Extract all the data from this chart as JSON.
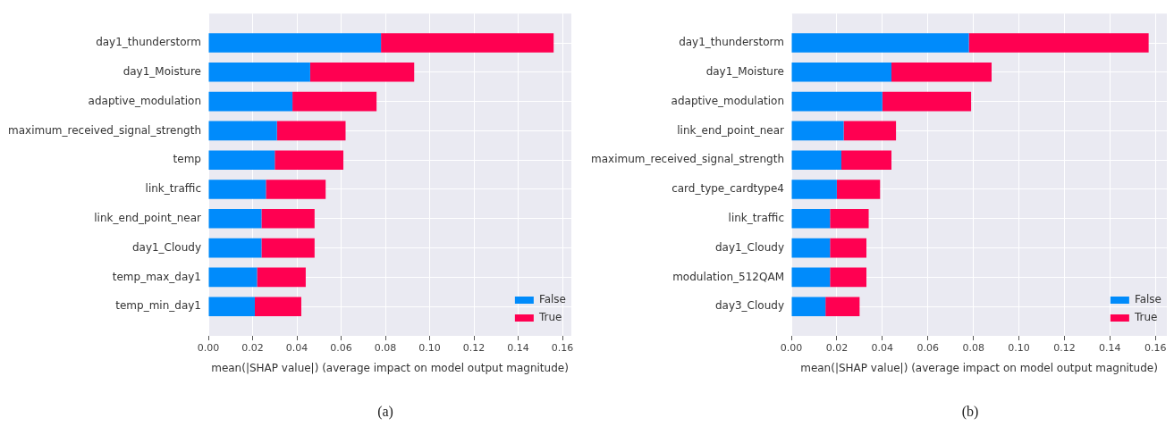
{
  "chart_data": [
    {
      "type": "bar",
      "orientation": "horizontal",
      "stacked": true,
      "xlabel": "mean(|SHAP value|) (average impact on model output magnitude)",
      "categories": [
        "day1_thunderstorm",
        "day1_Moisture",
        "adaptive_modulation",
        "maximum_received_signal_strength",
        "temp",
        "link_traffic",
        "link_end_point_near",
        "day1_Cloudy",
        "temp_max_day1",
        "temp_min_day1"
      ],
      "series": [
        {
          "name": "False",
          "color": "#008bfb",
          "values": [
            0.078,
            0.046,
            0.038,
            0.031,
            0.03,
            0.026,
            0.024,
            0.024,
            0.022,
            0.021
          ]
        },
        {
          "name": "True",
          "color": "#ff0051",
          "values": [
            0.078,
            0.047,
            0.038,
            0.031,
            0.031,
            0.027,
            0.024,
            0.024,
            0.022,
            0.021
          ]
        }
      ],
      "xlim": [
        0,
        0.164
      ],
      "xticks": [
        {
          "value": 0,
          "label": "0.00"
        },
        {
          "value": 0.02,
          "label": "0.02"
        },
        {
          "value": 0.04,
          "label": "0.04"
        },
        {
          "value": 0.06,
          "label": "0.06"
        },
        {
          "value": 0.08,
          "label": "0.08"
        },
        {
          "value": 0.1,
          "label": "0.10"
        },
        {
          "value": 0.12,
          "label": "0.12"
        },
        {
          "value": 0.14,
          "label": "0.14"
        },
        {
          "value": 0.16,
          "label": "0.16"
        }
      ],
      "grid": true,
      "legend": "bottom right",
      "annotations": [
        "(a)"
      ]
    },
    {
      "type": "bar",
      "orientation": "horizontal",
      "stacked": true,
      "xlabel": "mean(|SHAP value|) (average impact on model output magnitude)",
      "categories": [
        "day1_thunderstorm",
        "day1_Moisture",
        "adaptive_modulation",
        "link_end_point_near",
        "maximum_received_signal_strength",
        "card_type_cardtype4",
        "link_traffic",
        "day1_Cloudy",
        "modulation_512QAM",
        "day3_Cloudy"
      ],
      "series": [
        {
          "name": "False",
          "color": "#008bfb",
          "values": [
            0.078,
            0.044,
            0.04,
            0.023,
            0.022,
            0.02,
            0.017,
            0.017,
            0.017,
            0.015
          ]
        },
        {
          "name": "True",
          "color": "#ff0051",
          "values": [
            0.079,
            0.044,
            0.039,
            0.023,
            0.022,
            0.019,
            0.017,
            0.016,
            0.016,
            0.015
          ]
        }
      ],
      "xlim": [
        0,
        0.165
      ],
      "xticks": [
        {
          "value": 0,
          "label": "0.00"
        },
        {
          "value": 0.02,
          "label": "0.02"
        },
        {
          "value": 0.04,
          "label": "0.04"
        },
        {
          "value": 0.06,
          "label": "0.06"
        },
        {
          "value": 0.08,
          "label": "0.08"
        },
        {
          "value": 0.1,
          "label": "0.10"
        },
        {
          "value": 0.12,
          "label": "0.12"
        },
        {
          "value": 0.14,
          "label": "0.14"
        },
        {
          "value": 0.16,
          "label": "0.16"
        }
      ],
      "grid": true,
      "legend": "bottom right",
      "annotations": [
        "(b)"
      ]
    }
  ]
}
